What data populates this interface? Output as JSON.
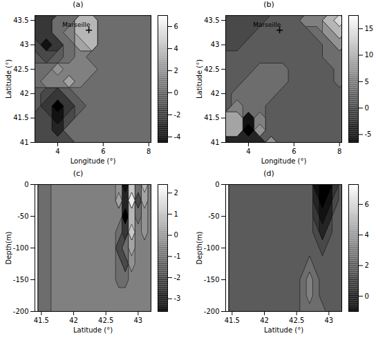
{
  "chart_data": [
    {
      "type": "contour",
      "title": "(a)",
      "x_label": "Longitude (°)",
      "y_label": "Latitude (°)",
      "xlim": [
        3,
        8.1
      ],
      "ylim": [
        41,
        43.6
      ],
      "xticks": [
        4,
        6,
        8
      ],
      "yticks": [
        41,
        41.5,
        42,
        42.5,
        43,
        43.5
      ],
      "x": [
        3,
        3.5,
        4,
        4.5,
        5,
        5.5,
        6,
        6.5,
        7,
        7.5,
        8
      ],
      "y": [
        41,
        41.25,
        41.5,
        41.75,
        42,
        42.25,
        42.5,
        42.75,
        43,
        43.25,
        43.5
      ],
      "values": [
        [
          null,
          null,
          -1,
          null,
          null,
          null,
          null,
          null,
          null,
          null,
          null
        ],
        [
          null,
          null,
          -2.5,
          0.5,
          null,
          null,
          null,
          null,
          null,
          null,
          null
        ],
        [
          null,
          -1,
          -3.5,
          -1,
          0.5,
          null,
          null,
          null,
          null,
          null,
          null
        ],
        [
          null,
          -1.5,
          -4,
          -2,
          0,
          0.5,
          null,
          null,
          null,
          null,
          null
        ],
        [
          0,
          -0.5,
          -2,
          0,
          1,
          0.5,
          0.5,
          null,
          null,
          null,
          null
        ],
        [
          1,
          1.5,
          2,
          3,
          1.5,
          1,
          0.5,
          0.5,
          null,
          null,
          null
        ],
        [
          0.5,
          1,
          2.5,
          2,
          1.5,
          2,
          1,
          0.5,
          0.5,
          null,
          null
        ],
        [
          0,
          -1,
          0,
          1,
          2,
          1,
          0.5,
          0.5,
          0.5,
          0.5,
          null
        ],
        [
          -1,
          -3,
          -2,
          1,
          3,
          4,
          1,
          0.5,
          0.5,
          0.5,
          0.5
        ],
        [
          null,
          -2,
          1,
          2,
          4,
          null,
          null,
          null,
          0.5,
          0.5,
          0.5
        ],
        [
          null,
          null,
          0.5,
          null,
          null,
          null,
          null,
          null,
          0.5,
          0.5,
          0.5
        ]
      ],
      "colorbar_lim": [
        -4.5,
        7
      ],
      "colorbar_ticks": [
        -4,
        -2,
        0,
        2,
        4,
        6
      ],
      "annotations": [
        {
          "text": "Marseille",
          "x": 5.37,
          "y": 43.3
        }
      ]
    },
    {
      "type": "contour",
      "title": "(b)",
      "x_label": "Longitude (°)",
      "y_label": "Latitude (°)",
      "xlim": [
        3,
        8.1
      ],
      "ylim": [
        41,
        43.6
      ],
      "xticks": [
        4,
        6,
        8
      ],
      "yticks": [
        41,
        41.5,
        42,
        42.5,
        43,
        43.5
      ],
      "x": [
        3,
        3.5,
        4,
        4.5,
        5,
        5.5,
        6,
        6.5,
        7,
        7.5,
        8
      ],
      "y": [
        41,
        41.25,
        41.5,
        41.75,
        42,
        42.25,
        42.5,
        42.75,
        43,
        43.25,
        43.5
      ],
      "values": [
        [
          null,
          null,
          -3,
          null,
          null,
          null,
          null,
          null,
          null,
          null,
          null
        ],
        [
          null,
          null,
          -5,
          8,
          null,
          null,
          null,
          null,
          null,
          null,
          null
        ],
        [
          null,
          10,
          -4,
          6,
          3,
          null,
          null,
          null,
          null,
          null,
          null
        ],
        [
          null,
          6,
          4,
          5,
          3,
          3,
          null,
          null,
          null,
          null,
          null
        ],
        [
          3,
          4,
          4,
          4,
          4,
          3,
          3,
          null,
          null,
          null,
          null
        ],
        [
          3,
          3,
          4,
          5,
          5,
          4,
          3,
          3,
          null,
          null,
          null
        ],
        [
          3,
          3,
          3,
          4,
          4,
          4,
          3,
          3,
          3,
          null,
          null
        ],
        [
          3,
          3,
          3,
          3,
          3,
          3,
          3,
          3,
          3,
          4,
          null
        ],
        [
          2,
          2,
          3,
          3,
          3,
          3,
          3,
          3,
          3,
          5,
          8
        ],
        [
          null,
          2,
          2,
          3,
          3,
          null,
          null,
          null,
          4,
          8,
          12
        ],
        [
          null,
          null,
          2,
          null,
          null,
          null,
          null,
          null,
          6,
          12,
          15
        ]
      ],
      "colorbar_lim": [
        -6.5,
        17.5
      ],
      "colorbar_ticks": [
        -5,
        0,
        5,
        10,
        15
      ],
      "annotations": [
        {
          "text": "Marseille",
          "x": 5.37,
          "y": 43.3
        }
      ]
    },
    {
      "type": "contour",
      "title": "(c)",
      "x_label": "Latitude (°)",
      "y_label": "Depth(m)",
      "xlim": [
        41.4,
        43.2
      ],
      "ylim": [
        -200,
        0
      ],
      "xticks": [
        41.5,
        42,
        42.5,
        43
      ],
      "yticks": [
        0,
        -50,
        -100,
        -150,
        -200
      ],
      "x": [
        41.5,
        41.6,
        41.7,
        41.8,
        41.9,
        42.0,
        42.1,
        42.2,
        42.3,
        42.4,
        42.5,
        42.6,
        42.7,
        42.8,
        42.9,
        43.0,
        43.1,
        43.2
      ],
      "y": [
        0,
        -25,
        -50,
        -75,
        -100,
        -125,
        -150,
        -175,
        -200
      ],
      "values": [
        [
          -1,
          -0.9,
          -0.6,
          -0.4,
          -0.4,
          -0.4,
          -0.6,
          -0.6,
          -0.6,
          -0.6,
          -0.6,
          -0.5,
          0,
          -3,
          1.5,
          -1,
          1,
          -0.5
        ],
        [
          -1,
          -0.9,
          -0.6,
          -0.4,
          -0.4,
          -0.4,
          -0.6,
          -0.6,
          -0.6,
          -0.6,
          -0.6,
          -0.5,
          0.5,
          -2.5,
          2,
          -1.5,
          0.5,
          -0.5
        ],
        [
          -1,
          -0.9,
          -0.6,
          -0.4,
          -0.4,
          -0.4,
          -0.6,
          -0.6,
          -0.6,
          -0.6,
          -0.6,
          -0.5,
          -0.5,
          -3.5,
          1,
          -1,
          0,
          -0.5
        ],
        [
          -1,
          -0.9,
          -0.6,
          -0.4,
          -0.4,
          -0.4,
          -0.6,
          -0.6,
          -0.6,
          -0.6,
          -0.6,
          -0.5,
          -1,
          -2,
          1.5,
          -0.5,
          0,
          -0.5
        ],
        [
          -1,
          -0.9,
          -0.6,
          -0.4,
          -0.4,
          -0.4,
          -0.6,
          -0.6,
          -0.6,
          -0.6,
          -0.6,
          -0.6,
          -1.5,
          -1,
          0.5,
          -0.5,
          -0.5,
          -0.5
        ],
        [
          -1,
          -0.9,
          -0.6,
          -0.4,
          -0.4,
          -0.4,
          -0.6,
          -0.6,
          -0.6,
          -0.6,
          -0.6,
          -0.6,
          -1,
          -1.5,
          0,
          -0.5,
          -0.5,
          null
        ],
        [
          -1,
          -0.9,
          -0.6,
          -0.4,
          -0.4,
          -0.4,
          -0.6,
          -0.6,
          -0.6,
          -0.6,
          -0.6,
          -0.6,
          -0.8,
          -1,
          -0.5,
          null,
          null,
          null
        ],
        [
          -1,
          -0.9,
          -0.6,
          -0.4,
          -0.4,
          -0.4,
          -0.6,
          -0.6,
          -0.6,
          -0.6,
          -0.6,
          -0.6,
          -0.6,
          -0.5,
          null,
          null,
          null,
          null
        ],
        [
          -1,
          -0.9,
          -0.6,
          -0.4,
          -0.4,
          -0.4,
          -0.6,
          -0.6,
          -0.6,
          -0.6,
          -0.6,
          -0.6,
          -0.6,
          null,
          null,
          null,
          null,
          null
        ]
      ],
      "colorbar_lim": [
        -3.6,
        2.4
      ],
      "colorbar_ticks": [
        -3,
        -2,
        -1,
        0,
        1,
        2
      ]
    },
    {
      "type": "contour",
      "title": "(d)",
      "x_label": "Latitude (°)",
      "y_label": "Depth(m)",
      "xlim": [
        41.4,
        43.2
      ],
      "ylim": [
        -200,
        0
      ],
      "xticks": [
        41.5,
        42,
        42.5,
        43
      ],
      "yticks": [
        0,
        -50,
        -100,
        -150,
        -200
      ],
      "x": [
        41.5,
        41.6,
        41.7,
        41.8,
        41.9,
        42.0,
        42.1,
        42.2,
        42.3,
        42.4,
        42.5,
        42.6,
        42.7,
        42.8,
        42.9,
        43.0,
        43.1,
        43.2
      ],
      "y": [
        0,
        -25,
        -50,
        -75,
        -100,
        -125,
        -150,
        -175,
        -200
      ],
      "values": [
        [
          2,
          2,
          2,
          2,
          2,
          2,
          2,
          2,
          2,
          2,
          2,
          2,
          2,
          0,
          -0.5,
          -0.5,
          1,
          2
        ],
        [
          2,
          2,
          2,
          2,
          2,
          2,
          2,
          2,
          2,
          2,
          2,
          2,
          2,
          0.5,
          -0.5,
          0,
          1.5,
          2
        ],
        [
          2,
          2,
          2,
          2,
          2,
          2,
          2,
          2,
          2,
          2,
          2,
          2,
          2,
          1,
          0,
          0.5,
          2,
          2
        ],
        [
          2,
          2,
          2,
          2,
          2,
          2,
          2,
          2,
          2,
          2,
          2,
          2,
          2,
          1.5,
          0.5,
          1.5,
          2,
          2
        ],
        [
          2,
          2,
          2,
          2,
          2,
          2,
          2,
          2,
          2,
          2,
          2,
          2,
          2.5,
          2,
          1.5,
          2,
          2,
          null
        ],
        [
          2,
          2,
          2,
          2,
          2,
          2,
          2,
          2,
          2,
          2,
          2,
          2.5,
          3,
          2.5,
          2,
          2,
          2,
          null
        ],
        [
          2,
          2,
          2,
          2,
          2,
          2,
          2,
          2,
          2,
          2,
          2,
          3,
          3.5,
          3,
          2.5,
          null,
          null,
          null
        ],
        [
          2,
          2,
          2,
          2,
          2,
          2,
          2,
          2,
          2,
          2,
          2,
          3,
          3.5,
          3,
          null,
          null,
          null,
          null
        ],
        [
          2,
          2,
          2,
          2,
          2,
          2,
          2,
          2,
          2,
          2,
          2,
          3,
          3,
          null,
          null,
          null,
          null,
          null
        ]
      ],
      "colorbar_lim": [
        -1,
        7.3
      ],
      "colorbar_ticks": [
        0,
        2,
        4,
        6
      ]
    }
  ]
}
